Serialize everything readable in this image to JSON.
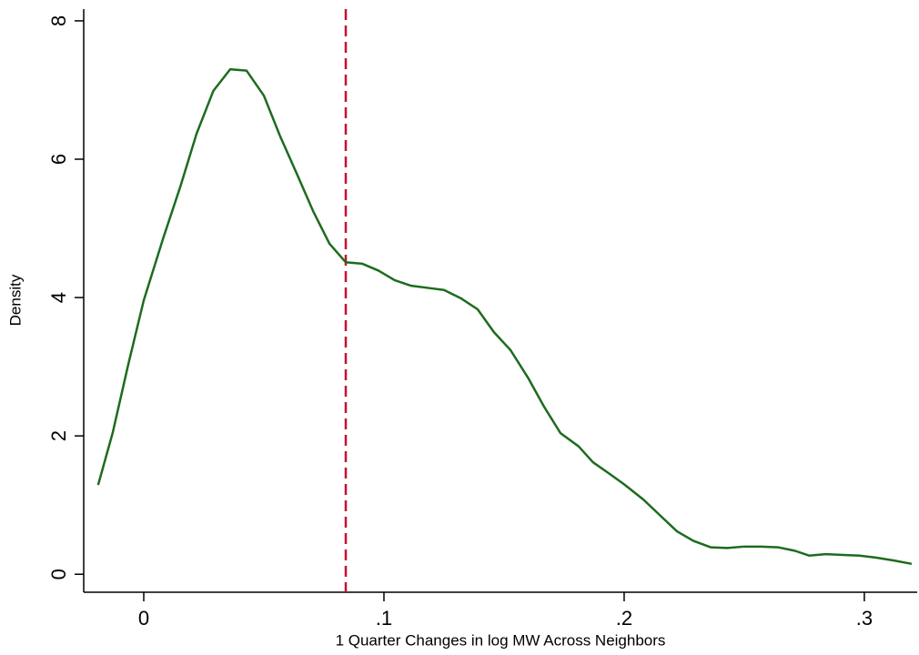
{
  "chart_data": {
    "type": "line",
    "x_label": "1 Quarter Changes in log MW Across Neighbors",
    "y_label": "Density",
    "x": [
      -0.019,
      -0.0129,
      -0.0064,
      0,
      0.0083,
      0.0152,
      0.022,
      0.029,
      0.036,
      0.0428,
      0.05,
      0.0568,
      0.0636,
      0.0705,
      0.0773,
      0.0841,
      0.0909,
      0.0977,
      0.1045,
      0.1114,
      0.1182,
      0.125,
      0.132,
      0.139,
      0.1458,
      0.1527,
      0.16,
      0.1667,
      0.1735,
      0.181,
      0.187,
      0.194,
      0.2,
      0.208,
      0.215,
      0.222,
      0.229,
      0.236,
      0.243,
      0.25,
      0.257,
      0.264,
      0.271,
      0.277,
      0.284,
      0.291,
      0.298,
      0.305,
      0.312,
      0.3197
    ],
    "values": [
      1.29,
      2.05,
      3.04,
      3.96,
      4.88,
      5.6,
      6.37,
      6.99,
      7.3,
      7.28,
      6.92,
      6.33,
      5.8,
      5.25,
      4.78,
      4.51,
      4.49,
      4.39,
      4.25,
      4.17,
      4.14,
      4.11,
      3.99,
      3.83,
      3.5,
      3.24,
      2.84,
      2.42,
      2.04,
      1.85,
      1.62,
      1.45,
      1.3,
      1.08,
      0.85,
      0.62,
      0.48,
      0.39,
      0.38,
      0.4,
      0.4,
      0.39,
      0.34,
      0.27,
      0.29,
      0.28,
      0.27,
      0.24,
      0.2,
      0.15
    ],
    "color": "#1e6b1e",
    "xline": {
      "value": 0.0841,
      "color": "#c8102e"
    },
    "xlim": [
      -0.025,
      0.322
    ],
    "ylim": [
      -0.26,
      8.17
    ],
    "xticks": [
      0,
      {
        "value": 0.1,
        "label": ".1"
      },
      {
        "value": 0.2,
        "label": ".2"
      },
      {
        "value": 0.3,
        "label": ".3"
      }
    ],
    "yticks": [
      0,
      2,
      4,
      6,
      8
    ],
    "grid": false
  }
}
